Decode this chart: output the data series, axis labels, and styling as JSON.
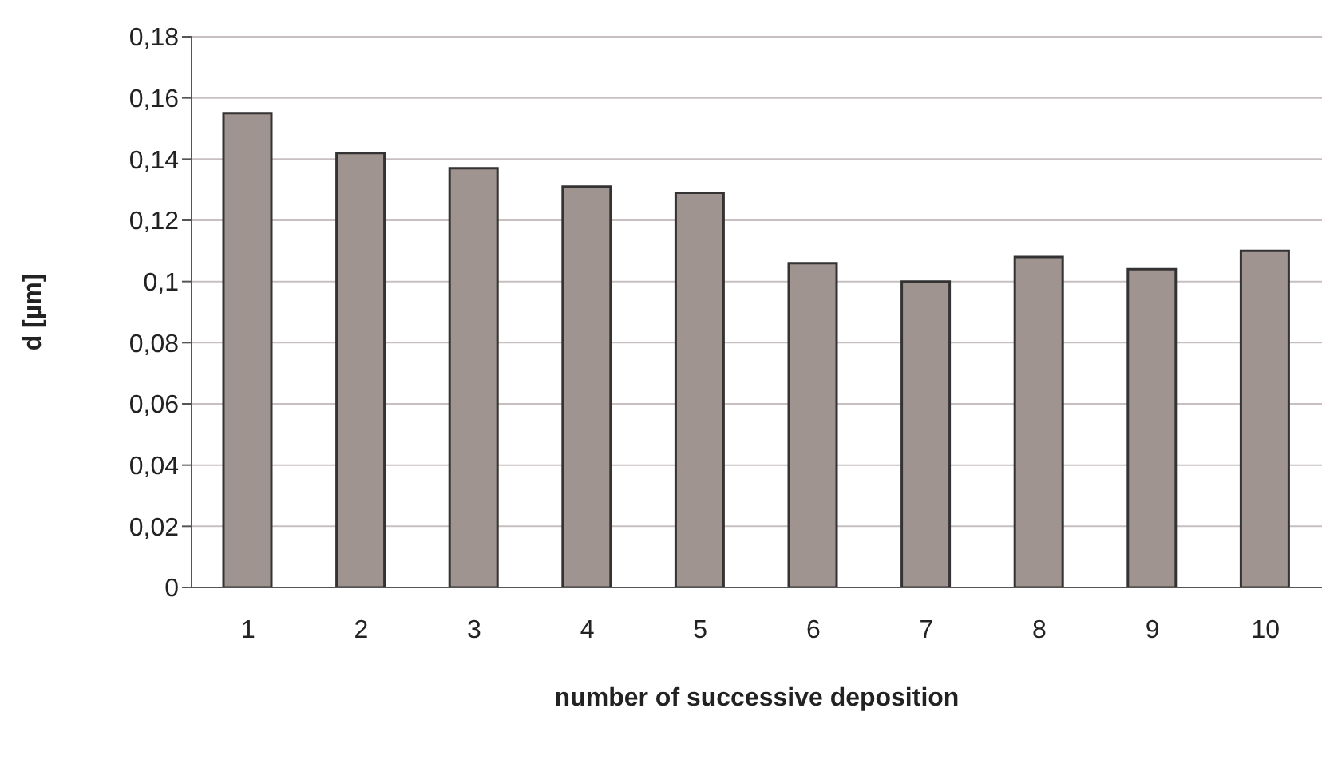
{
  "chart_data": {
    "type": "bar",
    "xlabel": "number of successive deposition",
    "ylabel": "d [µm]",
    "categories": [
      "1",
      "2",
      "3",
      "4",
      "5",
      "6",
      "7",
      "8",
      "9",
      "10"
    ],
    "values": [
      0.155,
      0.142,
      0.137,
      0.131,
      0.129,
      0.106,
      0.1,
      0.108,
      0.104,
      0.11
    ],
    "color": "#a09490",
    "ylim": [
      0,
      0.18
    ],
    "yticks": [
      0,
      {
        "value": 0.02,
        "label": "0,02"
      },
      {
        "value": 0.04,
        "label": "0,04"
      },
      {
        "value": 0.06,
        "label": "0,06"
      },
      {
        "value": 0.08,
        "label": "0,08"
      },
      {
        "value": 0.1,
        "label": "0,1"
      },
      {
        "value": 0.12,
        "label": "0,12"
      },
      {
        "value": 0.14,
        "label": "0,14"
      },
      {
        "value": 0.16,
        "label": "0,16"
      },
      {
        "value": 0.18,
        "label": "0,18"
      }
    ],
    "grid": "y"
  }
}
